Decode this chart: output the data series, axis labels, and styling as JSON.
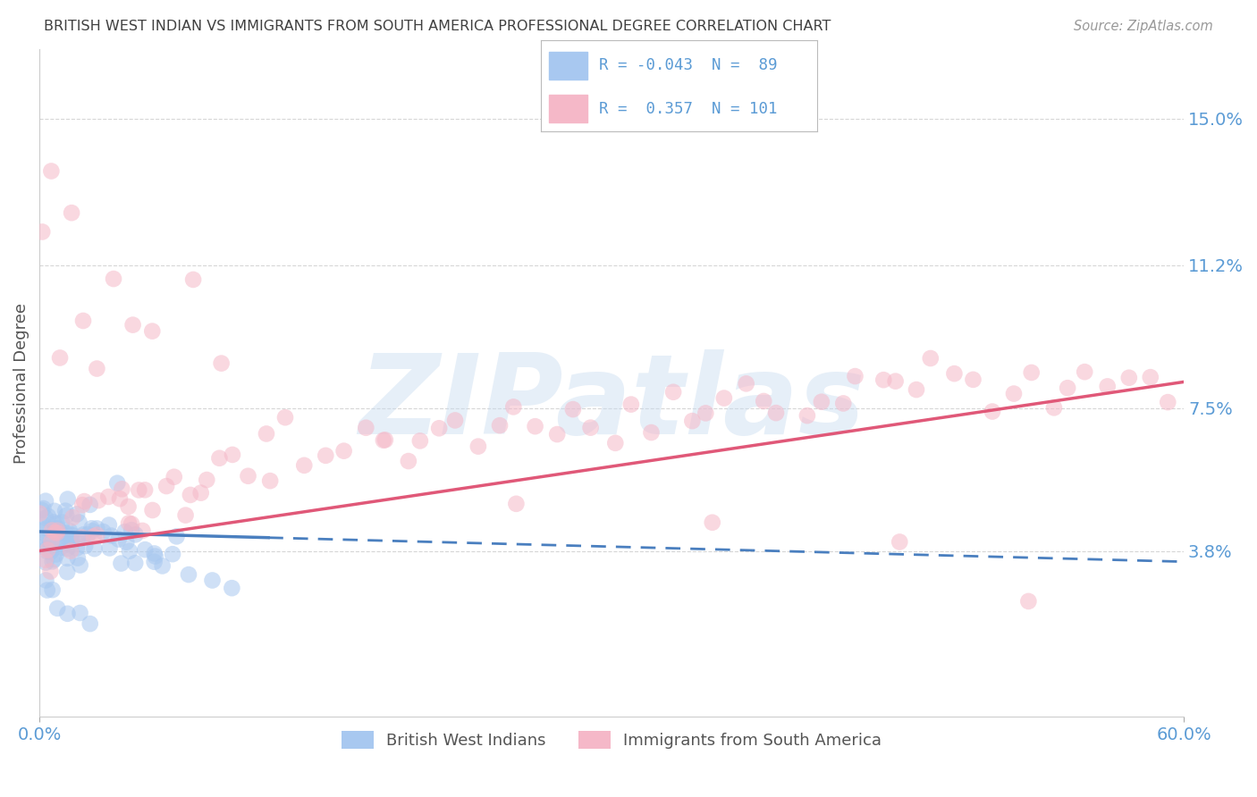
{
  "title": "BRITISH WEST INDIAN VS IMMIGRANTS FROM SOUTH AMERICA PROFESSIONAL DEGREE CORRELATION CHART",
  "source": "Source: ZipAtlas.com",
  "ylabel_label": "Professional Degree",
  "ylabel_ticks": [
    "3.8%",
    "7.5%",
    "11.2%",
    "15.0%"
  ],
  "ylabel_values": [
    0.038,
    0.075,
    0.112,
    0.15
  ],
  "xlim": [
    0.0,
    0.6
  ],
  "ylim": [
    -0.005,
    0.168
  ],
  "blue_R": -0.043,
  "blue_N": 89,
  "pink_R": 0.357,
  "pink_N": 101,
  "blue_color": "#A8C8F0",
  "pink_color": "#F5B8C8",
  "blue_line_color": "#4A7FBF",
  "pink_line_color": "#E05878",
  "legend_label_blue": "British West Indians",
  "legend_label_pink": "Immigrants from South America",
  "watermark_text": "ZIPatlas",
  "background_color": "#FFFFFF",
  "grid_color": "#CCCCCC",
  "axis_label_color": "#5B9BD5",
  "title_color": "#404040",
  "blue_x": [
    0.001,
    0.002,
    0.002,
    0.003,
    0.003,
    0.004,
    0.004,
    0.005,
    0.005,
    0.006,
    0.007,
    0.007,
    0.008,
    0.008,
    0.009,
    0.01,
    0.01,
    0.011,
    0.011,
    0.012,
    0.013,
    0.014,
    0.015,
    0.015,
    0.016,
    0.016,
    0.017,
    0.018,
    0.019,
    0.02,
    0.021,
    0.022,
    0.023,
    0.025,
    0.026,
    0.028,
    0.03,
    0.032,
    0.035,
    0.038,
    0.04,
    0.043,
    0.045,
    0.048,
    0.05,
    0.052,
    0.055,
    0.058,
    0.06,
    0.065,
    0.07,
    0.001,
    0.002,
    0.003,
    0.004,
    0.005,
    0.006,
    0.007,
    0.008,
    0.009,
    0.01,
    0.011,
    0.012,
    0.013,
    0.014,
    0.015,
    0.016,
    0.018,
    0.02,
    0.022,
    0.025,
    0.028,
    0.03,
    0.035,
    0.04,
    0.045,
    0.05,
    0.06,
    0.07,
    0.08,
    0.09,
    0.1,
    0.003,
    0.005,
    0.007,
    0.01,
    0.015,
    0.02,
    0.025
  ],
  "blue_y": [
    0.04,
    0.038,
    0.042,
    0.035,
    0.045,
    0.04,
    0.038,
    0.042,
    0.036,
    0.039,
    0.041,
    0.037,
    0.043,
    0.035,
    0.04,
    0.038,
    0.044,
    0.036,
    0.041,
    0.039,
    0.037,
    0.043,
    0.038,
    0.04,
    0.042,
    0.035,
    0.039,
    0.041,
    0.037,
    0.04,
    0.038,
    0.043,
    0.036,
    0.041,
    0.039,
    0.044,
    0.037,
    0.042,
    0.038,
    0.04,
    0.055,
    0.036,
    0.041,
    0.039,
    0.043,
    0.037,
    0.042,
    0.035,
    0.04,
    0.038,
    0.041,
    0.05,
    0.048,
    0.052,
    0.046,
    0.044,
    0.048,
    0.046,
    0.05,
    0.044,
    0.047,
    0.045,
    0.049,
    0.043,
    0.047,
    0.045,
    0.048,
    0.044,
    0.046,
    0.043,
    0.048,
    0.045,
    0.043,
    0.041,
    0.044,
    0.042,
    0.04,
    0.038,
    0.036,
    0.034,
    0.032,
    0.03,
    0.03,
    0.028,
    0.026,
    0.025,
    0.022,
    0.02,
    0.018
  ],
  "pink_x": [
    0.002,
    0.003,
    0.004,
    0.005,
    0.006,
    0.007,
    0.008,
    0.01,
    0.012,
    0.015,
    0.018,
    0.02,
    0.022,
    0.025,
    0.028,
    0.03,
    0.035,
    0.038,
    0.04,
    0.042,
    0.045,
    0.048,
    0.05,
    0.052,
    0.055,
    0.058,
    0.06,
    0.065,
    0.07,
    0.075,
    0.08,
    0.085,
    0.09,
    0.095,
    0.1,
    0.11,
    0.12,
    0.13,
    0.14,
    0.15,
    0.16,
    0.17,
    0.18,
    0.19,
    0.2,
    0.21,
    0.22,
    0.23,
    0.24,
    0.25,
    0.26,
    0.27,
    0.28,
    0.29,
    0.3,
    0.31,
    0.32,
    0.33,
    0.34,
    0.35,
    0.36,
    0.37,
    0.38,
    0.39,
    0.4,
    0.41,
    0.42,
    0.43,
    0.44,
    0.45,
    0.46,
    0.47,
    0.48,
    0.49,
    0.5,
    0.51,
    0.52,
    0.53,
    0.54,
    0.55,
    0.56,
    0.57,
    0.58,
    0.59,
    0.005,
    0.01,
    0.02,
    0.03,
    0.05,
    0.08,
    0.12,
    0.18,
    0.25,
    0.35,
    0.45,
    0.52,
    0.005,
    0.015,
    0.04,
    0.06,
    0.1
  ],
  "pink_y": [
    0.045,
    0.04,
    0.042,
    0.038,
    0.044,
    0.041,
    0.043,
    0.039,
    0.046,
    0.042,
    0.044,
    0.04,
    0.05,
    0.047,
    0.045,
    0.043,
    0.048,
    0.046,
    0.052,
    0.049,
    0.047,
    0.044,
    0.05,
    0.048,
    0.053,
    0.051,
    0.049,
    0.055,
    0.053,
    0.051,
    0.057,
    0.055,
    0.06,
    0.058,
    0.062,
    0.06,
    0.058,
    0.064,
    0.062,
    0.065,
    0.063,
    0.068,
    0.066,
    0.064,
    0.07,
    0.068,
    0.072,
    0.07,
    0.067,
    0.073,
    0.071,
    0.069,
    0.074,
    0.072,
    0.07,
    0.075,
    0.073,
    0.078,
    0.076,
    0.074,
    0.078,
    0.076,
    0.08,
    0.078,
    0.075,
    0.08,
    0.078,
    0.082,
    0.08,
    0.077,
    0.082,
    0.08,
    0.078,
    0.083,
    0.081,
    0.079,
    0.084,
    0.082,
    0.08,
    0.085,
    0.083,
    0.081,
    0.08,
    0.078,
    0.12,
    0.09,
    0.1,
    0.085,
    0.095,
    0.11,
    0.075,
    0.065,
    0.055,
    0.045,
    0.035,
    0.025,
    0.14,
    0.13,
    0.105,
    0.095,
    0.085
  ]
}
